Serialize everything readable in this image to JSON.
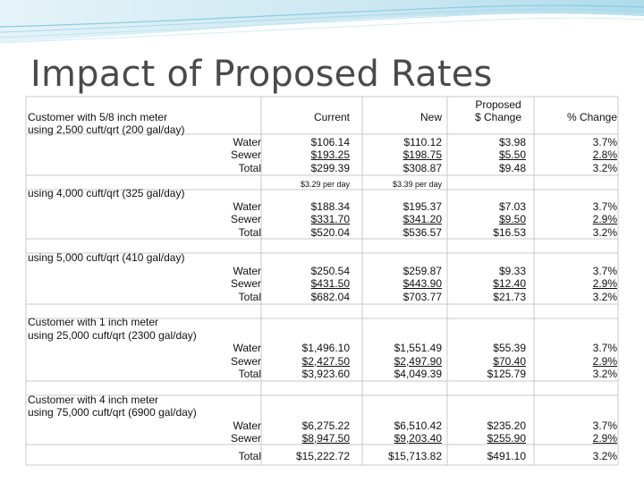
{
  "title": "Impact of Proposed Rates",
  "headers": {
    "current": "Current",
    "new": "New",
    "proposed_change_line1": "Proposed",
    "proposed_change_line2": "$ Change",
    "pct_change": "% Change"
  },
  "row_labels": {
    "water": "Water",
    "sewer": "Sewer",
    "total": "Total"
  },
  "per_day": {
    "current": "$3.29 per day",
    "new": "$3.39 per day"
  },
  "sections": [
    {
      "title": "Customer with 5/8 inch meter",
      "subtitle": "using 2,500 cuft/qrt (200 gal/day)",
      "current": [
        "$106.14",
        "$193.25",
        "$299.39"
      ],
      "new": [
        "$110.12",
        "$198.75",
        "$308.87"
      ],
      "change": [
        "$3.98",
        "$5.50",
        "$9.48"
      ],
      "pct": [
        "3.7%",
        "2.8%",
        "3.2%"
      ]
    },
    {
      "title": "using 4,000 cuft/qrt (325 gal/day)",
      "subtitle": "",
      "current": [
        "$188.34",
        "$331.70",
        "$520.04"
      ],
      "new": [
        "$195.37",
        "$341.20",
        "$536.57"
      ],
      "change": [
        "$7.03",
        "$9.50",
        "$16.53"
      ],
      "pct": [
        "3.7%",
        "2.9%",
        "3.2%"
      ]
    },
    {
      "title": "using 5,000 cuft/qrt (410 gal/day)",
      "subtitle": "",
      "current": [
        "$250.54",
        "$431.50",
        "$682.04"
      ],
      "new": [
        "$259.87",
        "$443.90",
        "$703.77"
      ],
      "change": [
        "$9.33",
        "$12.40",
        "$21.73"
      ],
      "pct": [
        "3.7%",
        "2.9%",
        "3.2%"
      ]
    },
    {
      "title": "Customer with 1 inch meter",
      "subtitle": "using 25,000 cuft/qrt (2300 gal/day)",
      "current": [
        "$1,496.10",
        "$2,427.50",
        "$3,923.60"
      ],
      "new": [
        "$1,551.49",
        "$2,497.90",
        "$4,049.39"
      ],
      "change": [
        "$55.39",
        "$70.40",
        "$125.79"
      ],
      "pct": [
        "3.7%",
        "2.9%",
        "3.2%"
      ]
    },
    {
      "title": "Customer with 4 inch meter",
      "subtitle": "using 75,000 cuft/qrt (6900 gal/day)",
      "current": [
        "$6,275.22",
        "$8,947.50",
        "$15,222.72"
      ],
      "new": [
        "$6,510.42",
        "$9,203.40",
        "$15,713.82"
      ],
      "change": [
        "$235.20",
        "$255.90",
        "$491.10"
      ],
      "pct": [
        "3.7%",
        "2.9%",
        "3.2%"
      ]
    }
  ]
}
